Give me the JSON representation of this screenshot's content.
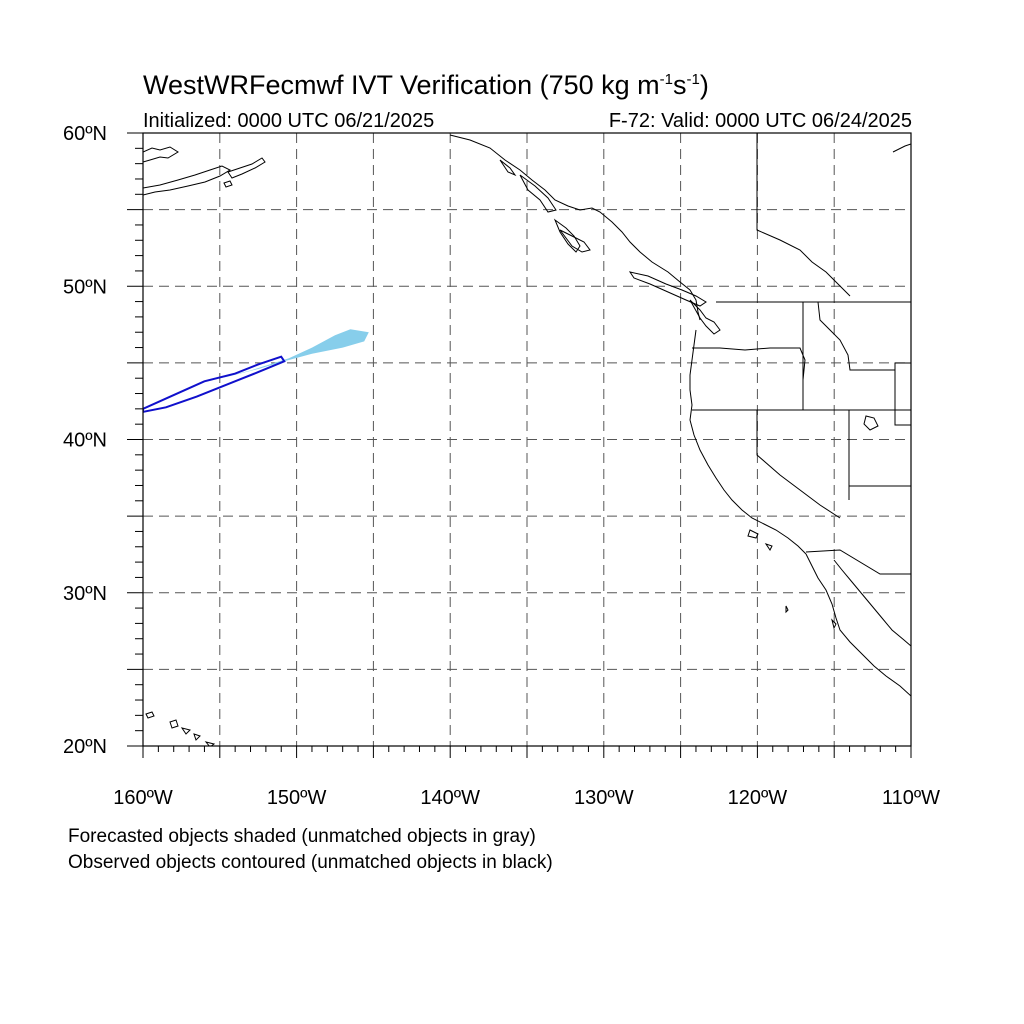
{
  "header": {
    "title_main": "WestWRFecmwf IVT Verification (750 kg m",
    "title_sup1": "-1",
    "title_mid": "s",
    "title_sup2": "-1",
    "title_end": ")",
    "initialized": "Initialized: 0000 UTC 06/21/2025",
    "valid": "F-72: Valid: 0000 UTC 06/24/2025"
  },
  "map": {
    "lon_range": [
      -160,
      -110
    ],
    "lat_range": [
      20,
      60
    ],
    "lat_labels": [
      "20ºN",
      "30ºN",
      "40ºN",
      "50ºN",
      "60ºN"
    ],
    "lon_labels": [
      "160ºW",
      "150ºW",
      "140ºW",
      "130ºW",
      "120ºW",
      "110ºW"
    ],
    "gridline_interval_deg": 5,
    "forecast_object": {
      "color": "#87ceeb",
      "outline_lonlat": [
        [
          -155.0,
          44.0
        ],
        [
          -153.0,
          44.5
        ],
        [
          -150.5,
          45.3
        ],
        [
          -149.0,
          46.0
        ],
        [
          -147.5,
          46.8
        ],
        [
          -146.5,
          47.2
        ],
        [
          -145.3,
          47.0
        ],
        [
          -145.6,
          46.4
        ],
        [
          -147.0,
          46.0
        ],
        [
          -149.0,
          45.6
        ],
        [
          -150.8,
          45.1
        ],
        [
          -152.5,
          44.6
        ],
        [
          -154.5,
          44.1
        ]
      ]
    },
    "observed_object": {
      "color": "#1010cc",
      "outline_lonlat": [
        [
          -160.0,
          42.0
        ],
        [
          -158.0,
          42.9
        ],
        [
          -156.0,
          43.8
        ],
        [
          -154.0,
          44.3
        ],
        [
          -152.5,
          44.9
        ],
        [
          -151.0,
          45.4
        ],
        [
          -150.8,
          45.1
        ],
        [
          -152.5,
          44.4
        ],
        [
          -154.5,
          43.6
        ],
        [
          -156.5,
          42.8
        ],
        [
          -158.5,
          42.1
        ],
        [
          -160.0,
          41.8
        ]
      ]
    }
  },
  "captions": {
    "forecast": "Forecasted objects shaded (unmatched objects in gray)",
    "observed": "Observed objects contoured (unmatched objects in black)"
  }
}
